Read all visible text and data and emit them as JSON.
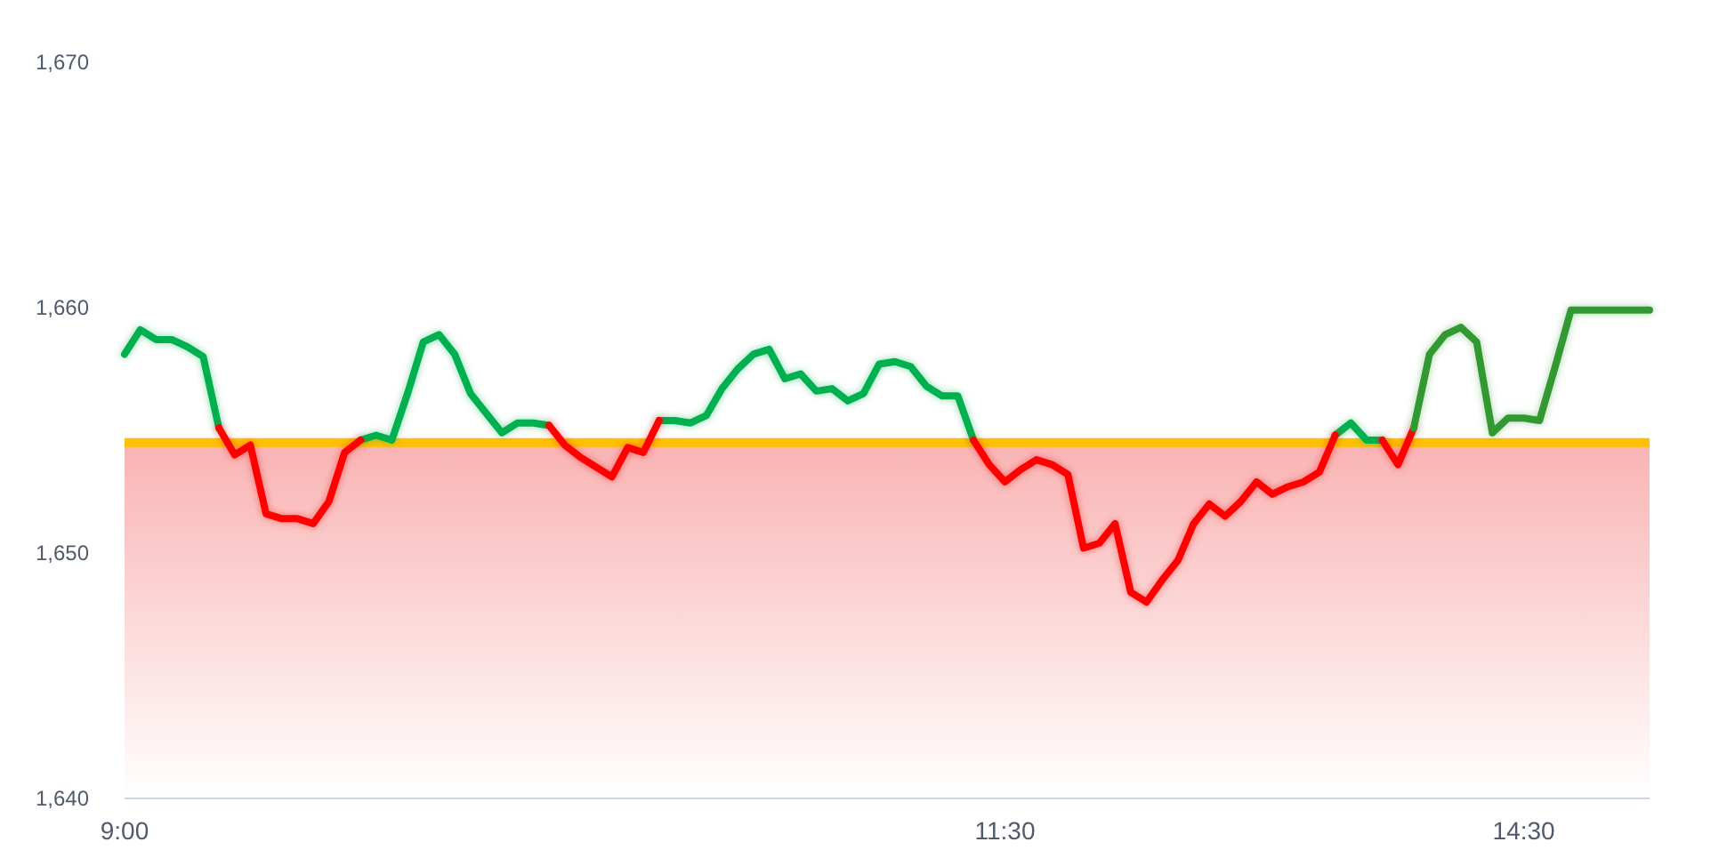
{
  "chart_data": {
    "type": "line",
    "categories": [
      "9:00",
      null,
      null,
      null,
      null,
      null,
      null,
      null,
      null,
      null,
      null,
      null,
      null,
      null,
      null,
      null,
      null,
      null,
      null,
      null,
      null,
      null,
      null,
      null,
      null,
      null,
      null,
      null,
      null,
      null,
      null,
      null,
      null,
      null,
      null,
      null,
      null,
      null,
      null,
      null,
      null,
      null,
      null,
      null,
      null,
      null,
      null,
      null,
      null,
      null,
      null,
      null,
      null,
      null,
      null,
      null,
      "11:30",
      null,
      null,
      null,
      null,
      null,
      null,
      null,
      null,
      null,
      null,
      null,
      null,
      null,
      null,
      null,
      null,
      null,
      null,
      null,
      null,
      null,
      null,
      null,
      null,
      null,
      null,
      null,
      null,
      null,
      null,
      null,
      null,
      "14:30",
      null,
      null,
      null,
      null,
      null,
      null,
      null,
      null
    ],
    "series": [
      {
        "color": "#00b050",
        "values": [
          1658.1,
          1659.1,
          1658.7,
          1658.7,
          1658.4,
          1658.0,
          1655.1,
          null,
          null,
          null,
          null,
          null,
          null,
          null,
          null,
          1654.6,
          1654.8,
          1654.6,
          1656.5,
          1658.6,
          1658.9,
          1658.1,
          1656.5,
          1655.7,
          1654.9,
          1655.3,
          1655.3,
          1655.2,
          null,
          null,
          null,
          null,
          null,
          null,
          1655.4,
          1655.4,
          1655.3,
          1655.6,
          1656.7,
          1657.5,
          1658.1,
          1658.3,
          1657.1,
          1657.3,
          1656.6,
          1656.7,
          1656.2,
          1656.5,
          1657.7,
          1657.8,
          1657.6,
          1656.8,
          1656.4,
          1656.4,
          1654.6,
          null,
          null,
          null,
          null,
          null,
          null,
          null,
          null,
          null,
          null,
          null,
          null,
          null,
          null,
          null,
          null,
          null,
          null,
          null,
          null,
          null,
          null,
          1654.8,
          1655.3,
          1654.6,
          1654.6,
          null,
          null,
          null,
          null,
          null,
          null,
          null,
          null,
          null,
          null,
          null,
          null,
          null,
          null,
          null,
          null,
          null
        ]
      },
      {
        "color": "#ff0000",
        "values": [
          null,
          null,
          null,
          null,
          null,
          null,
          1655.1,
          1654.0,
          1654.4,
          1651.6,
          1651.4,
          1651.4,
          1651.2,
          1652.1,
          1654.1,
          1654.6,
          null,
          null,
          null,
          null,
          null,
          null,
          null,
          null,
          null,
          null,
          null,
          1655.2,
          1654.4,
          1653.9,
          1653.5,
          1653.1,
          1654.3,
          1654.1,
          1655.4,
          null,
          null,
          null,
          null,
          null,
          null,
          null,
          null,
          null,
          null,
          null,
          null,
          null,
          null,
          null,
          null,
          null,
          null,
          null,
          1654.6,
          1653.6,
          1652.9,
          1653.4,
          1653.8,
          1653.6,
          1653.2,
          1650.2,
          1650.4,
          1651.2,
          1648.4,
          1648.0,
          1648.9,
          1649.7,
          1651.2,
          1652.0,
          1651.5,
          1652.1,
          1652.9,
          1652.4,
          1652.7,
          1652.9,
          1653.3,
          1654.8,
          null,
          null,
          1654.6,
          1653.6,
          1655.1,
          null,
          null,
          null,
          null,
          null,
          null,
          null,
          null,
          null,
          null,
          null,
          null,
          null,
          null,
          null
        ]
      },
      {
        "color": "#339933",
        "values": [
          null,
          null,
          null,
          null,
          null,
          null,
          null,
          null,
          null,
          null,
          null,
          null,
          null,
          null,
          null,
          null,
          null,
          null,
          null,
          null,
          null,
          null,
          null,
          null,
          null,
          null,
          null,
          null,
          null,
          null,
          null,
          null,
          null,
          null,
          null,
          null,
          null,
          null,
          null,
          null,
          null,
          null,
          null,
          null,
          null,
          null,
          null,
          null,
          null,
          null,
          null,
          null,
          null,
          null,
          null,
          null,
          null,
          null,
          null,
          null,
          null,
          null,
          null,
          null,
          null,
          null,
          null,
          null,
          null,
          null,
          null,
          null,
          null,
          null,
          null,
          null,
          null,
          null,
          null,
          null,
          null,
          null,
          1655.1,
          1658.1,
          1658.9,
          1659.2,
          1658.6,
          1654.9,
          1655.5,
          1655.5,
          1655.4,
          1657.6,
          1659.9,
          1659.9,
          1659.9,
          1659.9,
          1659.9,
          1659.9
        ]
      }
    ],
    "ylim": [
      1640,
      1670
    ],
    "yticks": [
      {
        "value": 1640,
        "label": "1,640"
      },
      {
        "value": 1650,
        "label": "1,650"
      },
      {
        "value": 1660,
        "label": "1,660"
      },
      {
        "value": 1670,
        "label": "1,670"
      }
    ],
    "ref_lines": [
      {
        "axis": "y",
        "value": 1654.5,
        "color": "#ffc000"
      }
    ],
    "bands": [
      {
        "axis": "y",
        "from": 1640,
        "to": 1654.5,
        "color": "#f9b3b3"
      }
    ]
  }
}
